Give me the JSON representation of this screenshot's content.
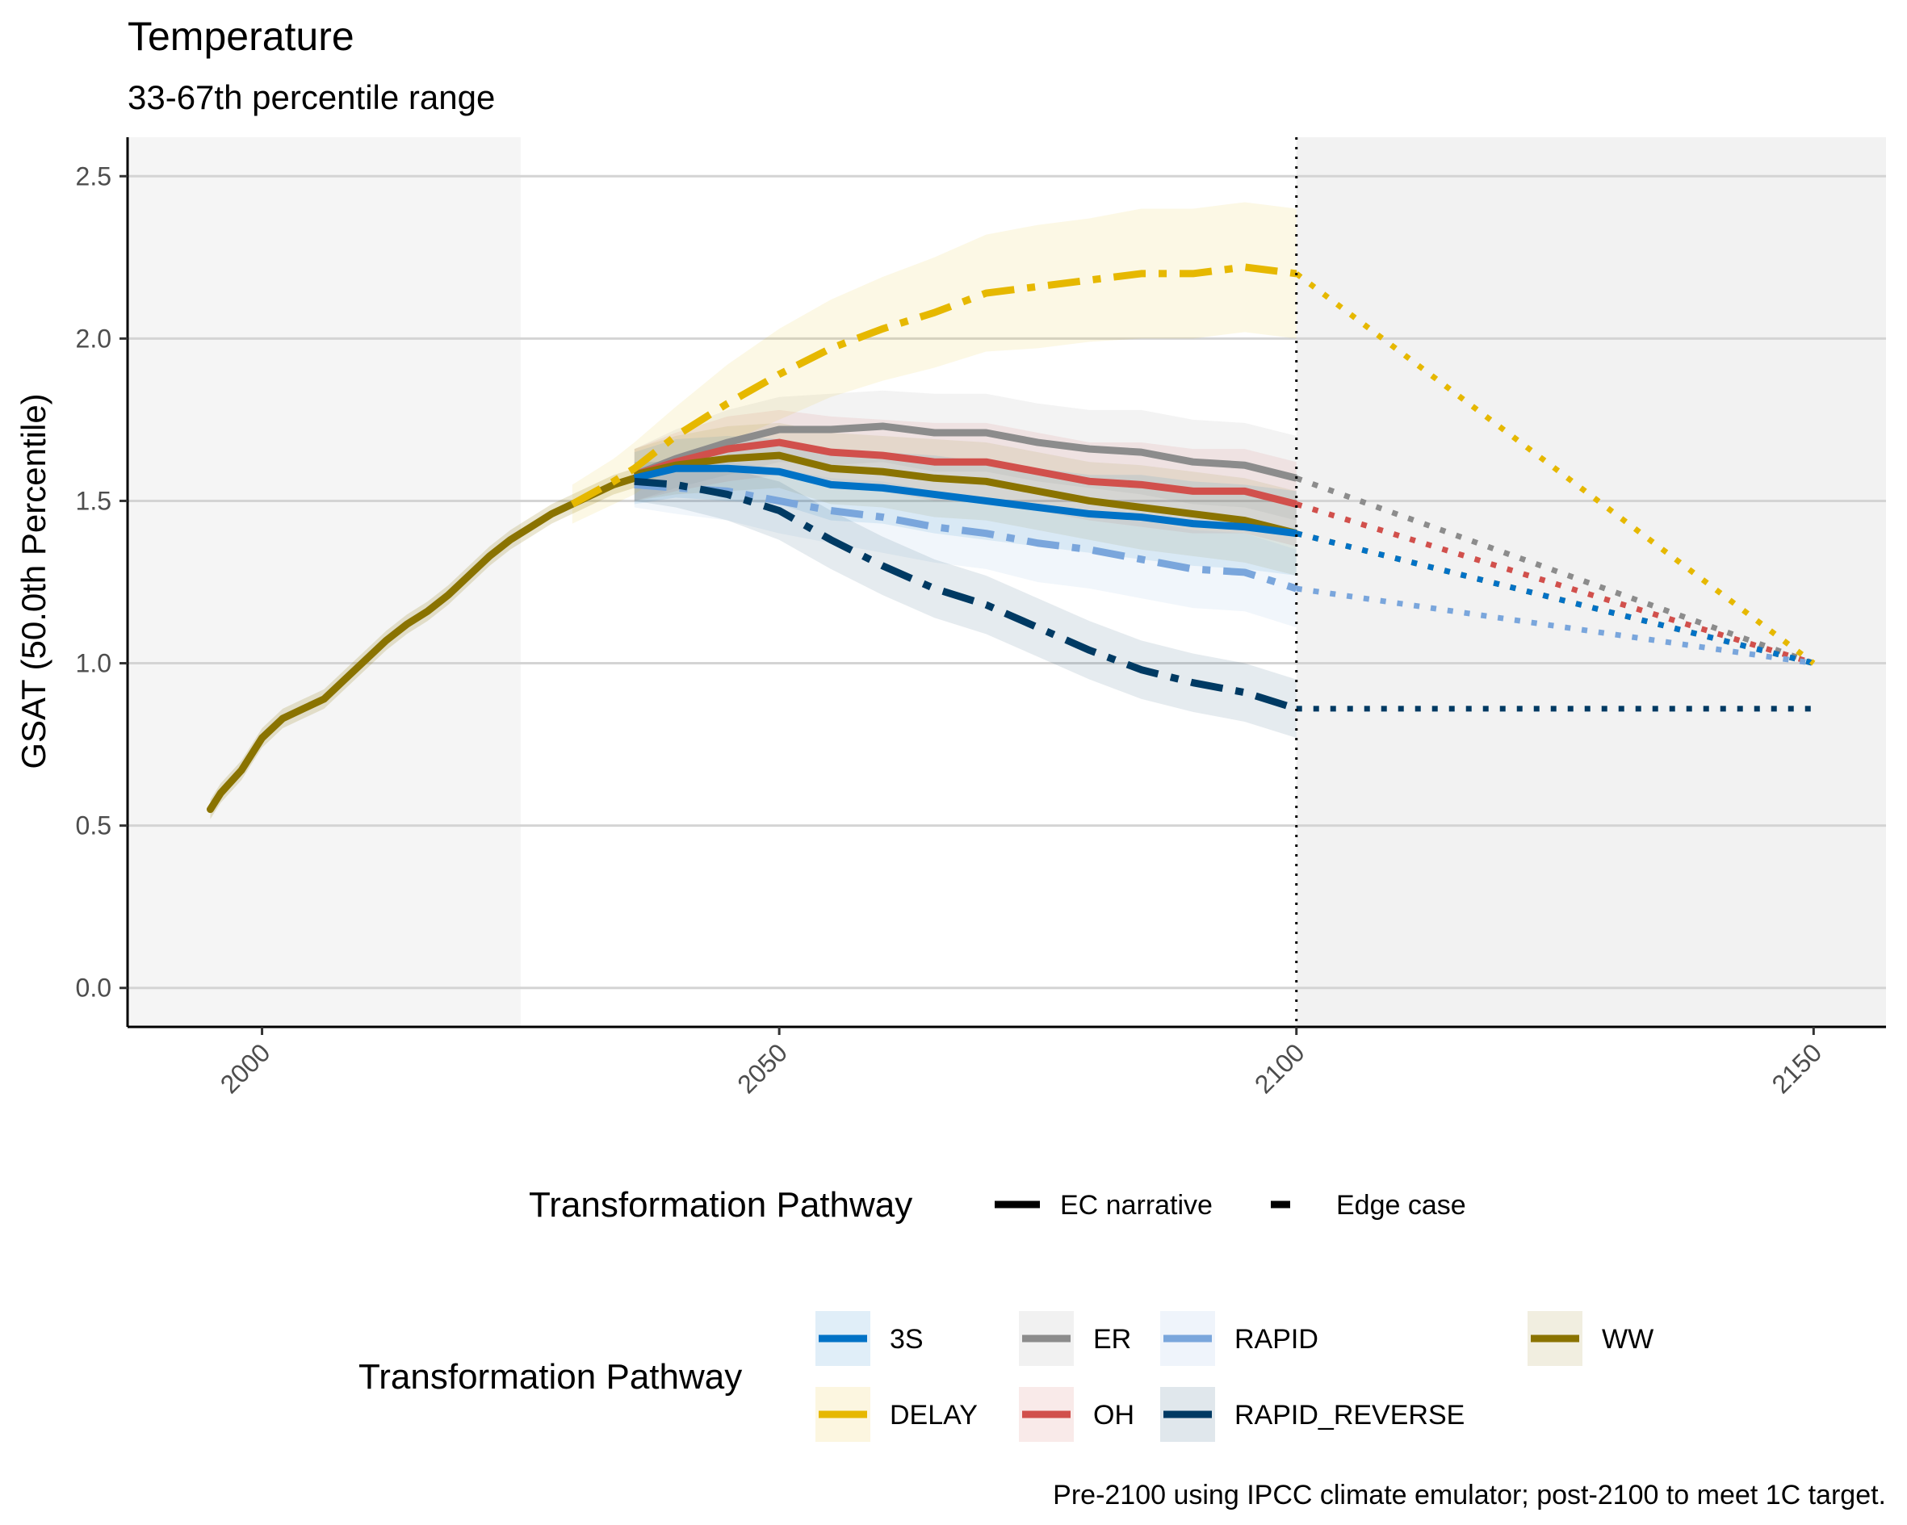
{
  "chart_data": {
    "type": "line",
    "title": "Temperature",
    "subtitle": "33-67th percentile range",
    "ylabel": "GSAT (50.0th Percentile)",
    "xlabel": "",
    "xlim": [
      1987,
      2157
    ],
    "ylim": [
      -0.12,
      2.62
    ],
    "xticks": [
      "2000",
      "2050",
      "2100",
      "2150"
    ],
    "yticks": [
      "0.0",
      "0.5",
      "1.0",
      "1.5",
      "2.0",
      "2.5"
    ],
    "ytick_values": [
      0,
      0.5,
      1.0,
      1.5,
      2.0,
      2.5
    ],
    "xtick_values": [
      2000,
      2050,
      2100,
      2150
    ],
    "history_shade_end": 2025,
    "extension_start": 2100,
    "extension_end": 2150,
    "grid": "horizontal",
    "caption": "Pre-2100 using IPCC climate emulator; post-2100 to meet 1C target.",
    "history": {
      "x": [
        1995,
        1996,
        1998,
        2000,
        2002,
        2004,
        2006,
        2008,
        2010,
        2012,
        2014,
        2016,
        2018,
        2020,
        2022,
        2024,
        2026,
        2028,
        2030,
        2032,
        2034,
        2036
      ],
      "y": [
        0.55,
        0.6,
        0.67,
        0.77,
        0.83,
        0.86,
        0.89,
        0.95,
        1.01,
        1.07,
        1.12,
        1.16,
        1.21,
        1.27,
        1.33,
        1.38,
        1.42,
        1.46,
        1.49,
        1.52,
        1.55,
        1.57
      ],
      "band": 0.03
    },
    "legend_linetype": {
      "title": "Transformation Pathway",
      "entries": [
        "EC narrative",
        "Edge case"
      ]
    },
    "legend_color": {
      "title": "Transformation Pathway",
      "entries": [
        "3S",
        "DELAY",
        "ER",
        "OH",
        "RAPID",
        "RAPID_REVERSE",
        "WW"
      ]
    },
    "series": [
      {
        "name": "ER",
        "color": "#8c8c8c",
        "dash": "solid",
        "end_value": 1.0,
        "x": [
          2036,
          2040,
          2045,
          2050,
          2055,
          2060,
          2065,
          2070,
          2075,
          2080,
          2085,
          2090,
          2095,
          2100
        ],
        "y": [
          1.58,
          1.63,
          1.68,
          1.72,
          1.72,
          1.73,
          1.71,
          1.71,
          1.68,
          1.66,
          1.65,
          1.62,
          1.61,
          1.57
        ],
        "band": [
          0.08,
          0.09,
          0.1,
          0.1,
          0.11,
          0.11,
          0.12,
          0.12,
          0.12,
          0.12,
          0.13,
          0.13,
          0.13,
          0.13
        ]
      },
      {
        "name": "OH",
        "color": "#d1504c",
        "dash": "solid",
        "end_value": 1.0,
        "x": [
          2036,
          2040,
          2045,
          2050,
          2055,
          2060,
          2065,
          2070,
          2075,
          2080,
          2085,
          2090,
          2095,
          2100
        ],
        "y": [
          1.58,
          1.62,
          1.66,
          1.68,
          1.65,
          1.64,
          1.62,
          1.62,
          1.59,
          1.56,
          1.55,
          1.53,
          1.53,
          1.49
        ],
        "band": [
          0.08,
          0.09,
          0.1,
          0.1,
          0.11,
          0.11,
          0.12,
          0.12,
          0.12,
          0.12,
          0.13,
          0.13,
          0.13,
          0.13
        ]
      },
      {
        "name": "WW",
        "color": "#8a7300",
        "dash": "solid",
        "end_value": 1.0,
        "x": [
          2036,
          2040,
          2045,
          2050,
          2055,
          2060,
          2065,
          2070,
          2075,
          2080,
          2085,
          2090,
          2095,
          2100
        ],
        "y": [
          1.58,
          1.61,
          1.63,
          1.64,
          1.6,
          1.59,
          1.57,
          1.56,
          1.53,
          1.5,
          1.48,
          1.46,
          1.44,
          1.4
        ],
        "band": [
          0.08,
          0.09,
          0.1,
          0.1,
          0.11,
          0.11,
          0.12,
          0.12,
          0.12,
          0.12,
          0.13,
          0.13,
          0.13,
          0.13
        ]
      },
      {
        "name": "3S",
        "color": "#0072c6",
        "dash": "solid",
        "end_value": 1.0,
        "x": [
          2036,
          2040,
          2045,
          2050,
          2055,
          2060,
          2065,
          2070,
          2075,
          2080,
          2085,
          2090,
          2095,
          2100
        ],
        "y": [
          1.57,
          1.6,
          1.6,
          1.59,
          1.55,
          1.54,
          1.52,
          1.5,
          1.48,
          1.46,
          1.45,
          1.43,
          1.42,
          1.4
        ],
        "band": [
          0.08,
          0.09,
          0.1,
          0.1,
          0.11,
          0.11,
          0.12,
          0.12,
          0.12,
          0.12,
          0.13,
          0.13,
          0.13,
          0.13
        ]
      },
      {
        "name": "RAPID",
        "color": "#7aa6dc",
        "dash": "dashdot",
        "end_value": 1.0,
        "x": [
          2036,
          2040,
          2045,
          2050,
          2055,
          2060,
          2065,
          2070,
          2075,
          2080,
          2085,
          2090,
          2095,
          2100
        ],
        "y": [
          1.55,
          1.54,
          1.53,
          1.5,
          1.47,
          1.45,
          1.42,
          1.4,
          1.37,
          1.35,
          1.32,
          1.29,
          1.28,
          1.23
        ],
        "band": [
          0.07,
          0.08,
          0.09,
          0.1,
          0.1,
          0.11,
          0.11,
          0.11,
          0.12,
          0.12,
          0.12,
          0.12,
          0.12,
          0.12
        ]
      },
      {
        "name": "RAPID_REVERSE",
        "color": "#003a63",
        "dash": "dashdot",
        "end_value": 0.86,
        "x": [
          2036,
          2040,
          2045,
          2050,
          2055,
          2060,
          2065,
          2070,
          2075,
          2080,
          2085,
          2090,
          2095,
          2100
        ],
        "y": [
          1.56,
          1.55,
          1.52,
          1.47,
          1.38,
          1.3,
          1.23,
          1.18,
          1.11,
          1.04,
          0.98,
          0.94,
          0.91,
          0.86
        ],
        "band": [
          0.06,
          0.07,
          0.08,
          0.09,
          0.09,
          0.09,
          0.09,
          0.09,
          0.09,
          0.09,
          0.09,
          0.09,
          0.09,
          0.09
        ]
      },
      {
        "name": "DELAY",
        "color": "#e6b800",
        "dash": "dashdot",
        "end_value": 1.0,
        "x": [
          2030,
          2034,
          2036,
          2040,
          2045,
          2050,
          2055,
          2060,
          2065,
          2070,
          2075,
          2080,
          2085,
          2090,
          2095,
          2100
        ],
        "y": [
          1.49,
          1.56,
          1.6,
          1.7,
          1.8,
          1.89,
          1.97,
          2.03,
          2.08,
          2.14,
          2.16,
          2.18,
          2.2,
          2.2,
          2.22,
          2.2
        ],
        "band": [
          0.06,
          0.07,
          0.08,
          0.09,
          0.12,
          0.14,
          0.15,
          0.16,
          0.17,
          0.18,
          0.19,
          0.19,
          0.2,
          0.2,
          0.2,
          0.2
        ]
      }
    ]
  }
}
